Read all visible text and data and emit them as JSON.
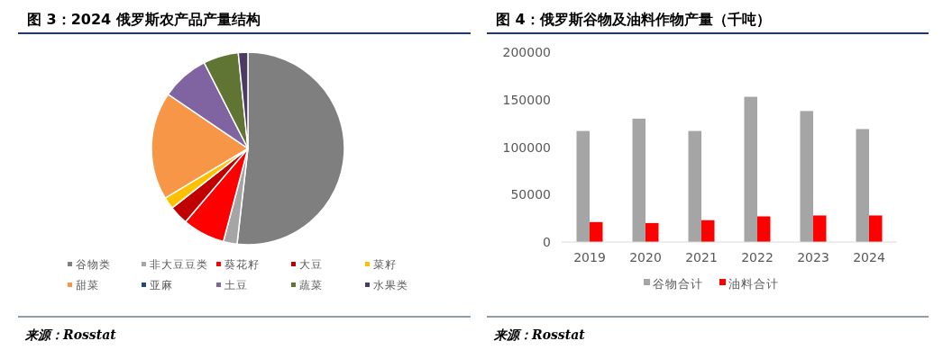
{
  "chart_data": [
    {
      "type": "pie",
      "title": "图 3：2024 俄罗斯农产品产量结构",
      "categories": [
        "谷物类",
        "非大豆豆类",
        "葵花籽",
        "大豆",
        "菜籽",
        "甜菜",
        "亚麻",
        "土豆",
        "蔬菜",
        "水果类"
      ],
      "values": [
        51.8,
        2.3,
        7.1,
        3.2,
        2.0,
        18.1,
        0,
        8.0,
        5.9,
        1.6
      ],
      "colors": [
        "#7f7f7f",
        "#a5a5a5",
        "#ff0000",
        "#c00000",
        "#ffc000",
        "#f79646",
        "#1f497d",
        "#8064a2",
        "#607434",
        "#4b3b62"
      ],
      "legend": "bottom",
      "annotations": [
        "来源：Rosstat"
      ]
    },
    {
      "type": "bar",
      "title": "图 4：俄罗斯谷物及油料作物产量（千吨）",
      "categories": [
        "2019",
        "2020",
        "2021",
        "2022",
        "2023",
        "2024"
      ],
      "series": [
        {
          "name": "谷物合计",
          "color": "#a5a5a5",
          "values": [
            117000,
            130000,
            117000,
            153000,
            138000,
            119000
          ]
        },
        {
          "name": "油料合计",
          "color": "#ff0000",
          "values": [
            21000,
            20000,
            23000,
            27000,
            28000,
            28000
          ]
        }
      ],
      "ylim": [
        0,
        200000
      ],
      "yticks": [
        0,
        50000,
        100000,
        150000,
        200000
      ],
      "legend": "bottom",
      "annotations": [
        "来源：Rosstat"
      ]
    }
  ]
}
